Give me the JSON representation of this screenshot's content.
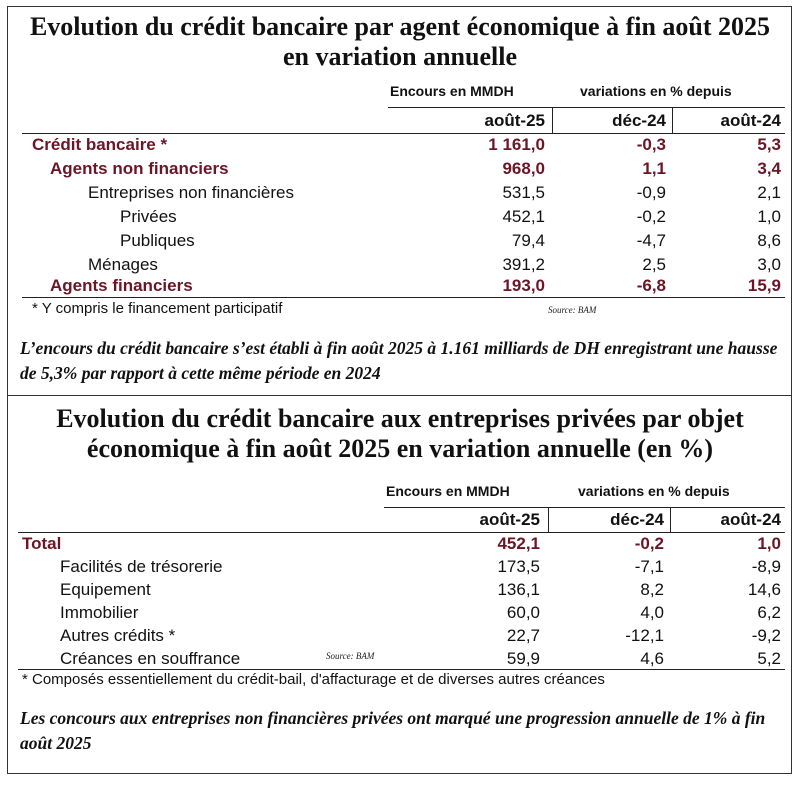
{
  "table1": {
    "title": "Evolution du crédit bancaire par agent économique à fin août 2025 en variation annuelle",
    "header_encours": "Encours en MMDH",
    "header_variations": "variations en % depuis",
    "col_encours": "août-25",
    "col_dec": "déc-24",
    "col_aout": "août-24",
    "rows": [
      {
        "label": "Crédit bancaire *",
        "encours": "1 161,0",
        "dec": "-0,3",
        "aout": "5,3"
      },
      {
        "label": "Agents non financiers",
        "encours": "968,0",
        "dec": "1,1",
        "aout": "3,4"
      },
      {
        "label": "Entreprises non financières",
        "encours": "531,5",
        "dec": "-0,9",
        "aout": "2,1"
      },
      {
        "label": "Privées",
        "encours": "452,1",
        "dec": "-0,2",
        "aout": "1,0"
      },
      {
        "label": "Publiques",
        "encours": "79,4",
        "dec": "-4,7",
        "aout": "8,6"
      },
      {
        "label": "Ménages",
        "encours": "391,2",
        "dec": "2,5",
        "aout": "3,0"
      },
      {
        "label": "Agents financiers",
        "encours": "193,0",
        "dec": "-6,8",
        "aout": "15,9"
      }
    ],
    "footnote": "* Y compris le financement participatif",
    "source": "Source: BAM",
    "commentary": "L’encours du crédit bancaire s’est établi à fin août 2025 à 1.161 milliards de DH enregistrant une hausse de 5,3% par rapport à cette même période en 2024"
  },
  "table2": {
    "title": "Evolution du crédit bancaire aux entreprises privées par objet économique à fin août 2025 en variation annuelle (en %)",
    "header_encours": "Encours en MMDH",
    "header_variations": "variations en % depuis",
    "col_encours": "août-25",
    "col_dec": "déc-24",
    "col_aout": "août-24",
    "rows": [
      {
        "label": "Total",
        "encours": "452,1",
        "dec": "-0,2",
        "aout": "1,0"
      },
      {
        "label": "Facilités de trésorerie",
        "encours": "173,5",
        "dec": "-7,1",
        "aout": "-8,9"
      },
      {
        "label": "Equipement",
        "encours": "136,1",
        "dec": "8,2",
        "aout": "14,6"
      },
      {
        "label": "Immobilier",
        "encours": "60,0",
        "dec": "4,0",
        "aout": "6,2"
      },
      {
        "label": "Autres crédits *",
        "encours": "22,7",
        "dec": "-12,1",
        "aout": "-9,2"
      },
      {
        "label": "Créances en souffrance",
        "encours": "59,9",
        "dec": "4,6",
        "aout": "5,2"
      }
    ],
    "source": "Source: BAM",
    "footnote": "* Composés essentiellement du crédit-bail, d'affacturage et de diverses autres créances",
    "commentary": "Les concours aux entreprises non financières privées ont marqué une progression annuelle de 1% à fin août 2025"
  }
}
